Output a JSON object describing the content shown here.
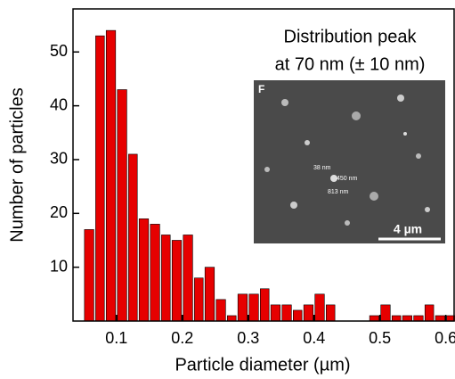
{
  "chart_data": {
    "type": "histogram",
    "xlabel": "Particle diameter (µm)",
    "ylabel": "Number of particles",
    "annotation": [
      "Distribution peak",
      "at 70 nm (± 10 nm)"
    ],
    "inset": {
      "label": "F",
      "size_labels": [
        "38 nm",
        "450 nm",
        "813 nm"
      ],
      "scale_bar": "4 µm"
    },
    "bins": [
      0.05,
      0.067,
      0.083,
      0.1,
      0.117,
      0.133,
      0.15,
      0.167,
      0.183,
      0.2,
      0.217,
      0.233,
      0.25,
      0.267,
      0.283,
      0.3,
      0.317,
      0.333,
      0.35,
      0.367,
      0.383,
      0.4,
      0.417,
      0.433,
      0.45,
      0.467,
      0.483,
      0.5,
      0.517,
      0.533,
      0.55,
      0.567,
      0.583,
      0.6,
      0.617
    ],
    "values": [
      17,
      53,
      54,
      43,
      31,
      19,
      18,
      16,
      15,
      16,
      8,
      10,
      4,
      1,
      5,
      5,
      6,
      3,
      3,
      2,
      3,
      5,
      3,
      0,
      0,
      0,
      1,
      3,
      1,
      1,
      1,
      3,
      1,
      1
    ],
    "color": "#e60000",
    "xlim": [
      0.034,
      0.614
    ],
    "ylim": [
      0,
      58
    ],
    "xticks": [
      0.1,
      0.2,
      0.3,
      0.4,
      0.5,
      0.6
    ],
    "yticks": [
      10,
      20,
      30,
      40,
      50
    ]
  }
}
